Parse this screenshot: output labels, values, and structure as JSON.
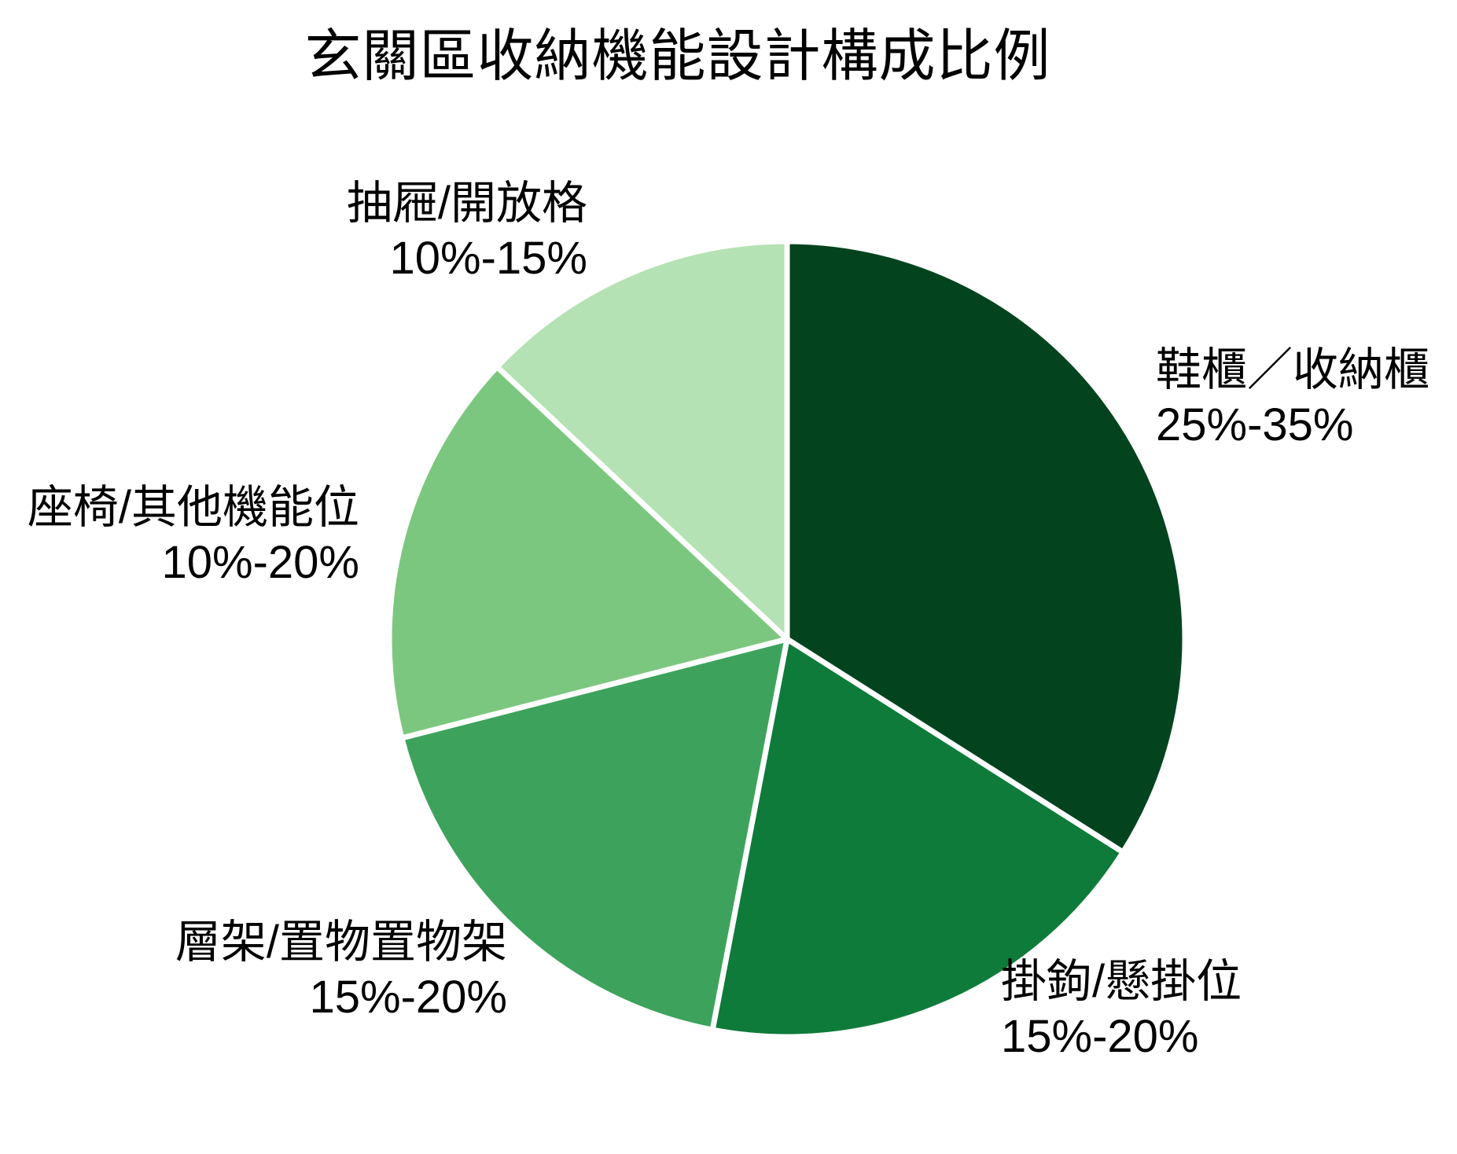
{
  "chart_data": {
    "type": "pie",
    "title": "玄關區收納機能設計構成比例",
    "direction": "clockwise",
    "start_angle_deg": 0,
    "legend_position": "none",
    "grid": false,
    "background": "#ffffff",
    "separator_color": "#ffffff",
    "label_color": "#000000",
    "slices": [
      {
        "name": "shoe-cabinet",
        "label": "鞋櫃／收納櫃",
        "range": "25%-35%",
        "plot_fraction": 0.34,
        "color": "#03441e"
      },
      {
        "name": "hooks",
        "label": "掛鉤/懸掛位",
        "range": "15%-20%",
        "plot_fraction": 0.19,
        "color": "#0e7b3a"
      },
      {
        "name": "shelves",
        "label": "層架/置物置物架",
        "range": "15%-20%",
        "plot_fraction": 0.18,
        "color": "#3da35c"
      },
      {
        "name": "seating",
        "label": "座椅/其他機能位",
        "range": "10%-20%",
        "plot_fraction": 0.16,
        "color": "#7cc77f"
      },
      {
        "name": "drawers",
        "label": "抽屜/開放格",
        "range": "10%-15%",
        "plot_fraction": 0.13,
        "color": "#b5e2b4"
      }
    ]
  }
}
